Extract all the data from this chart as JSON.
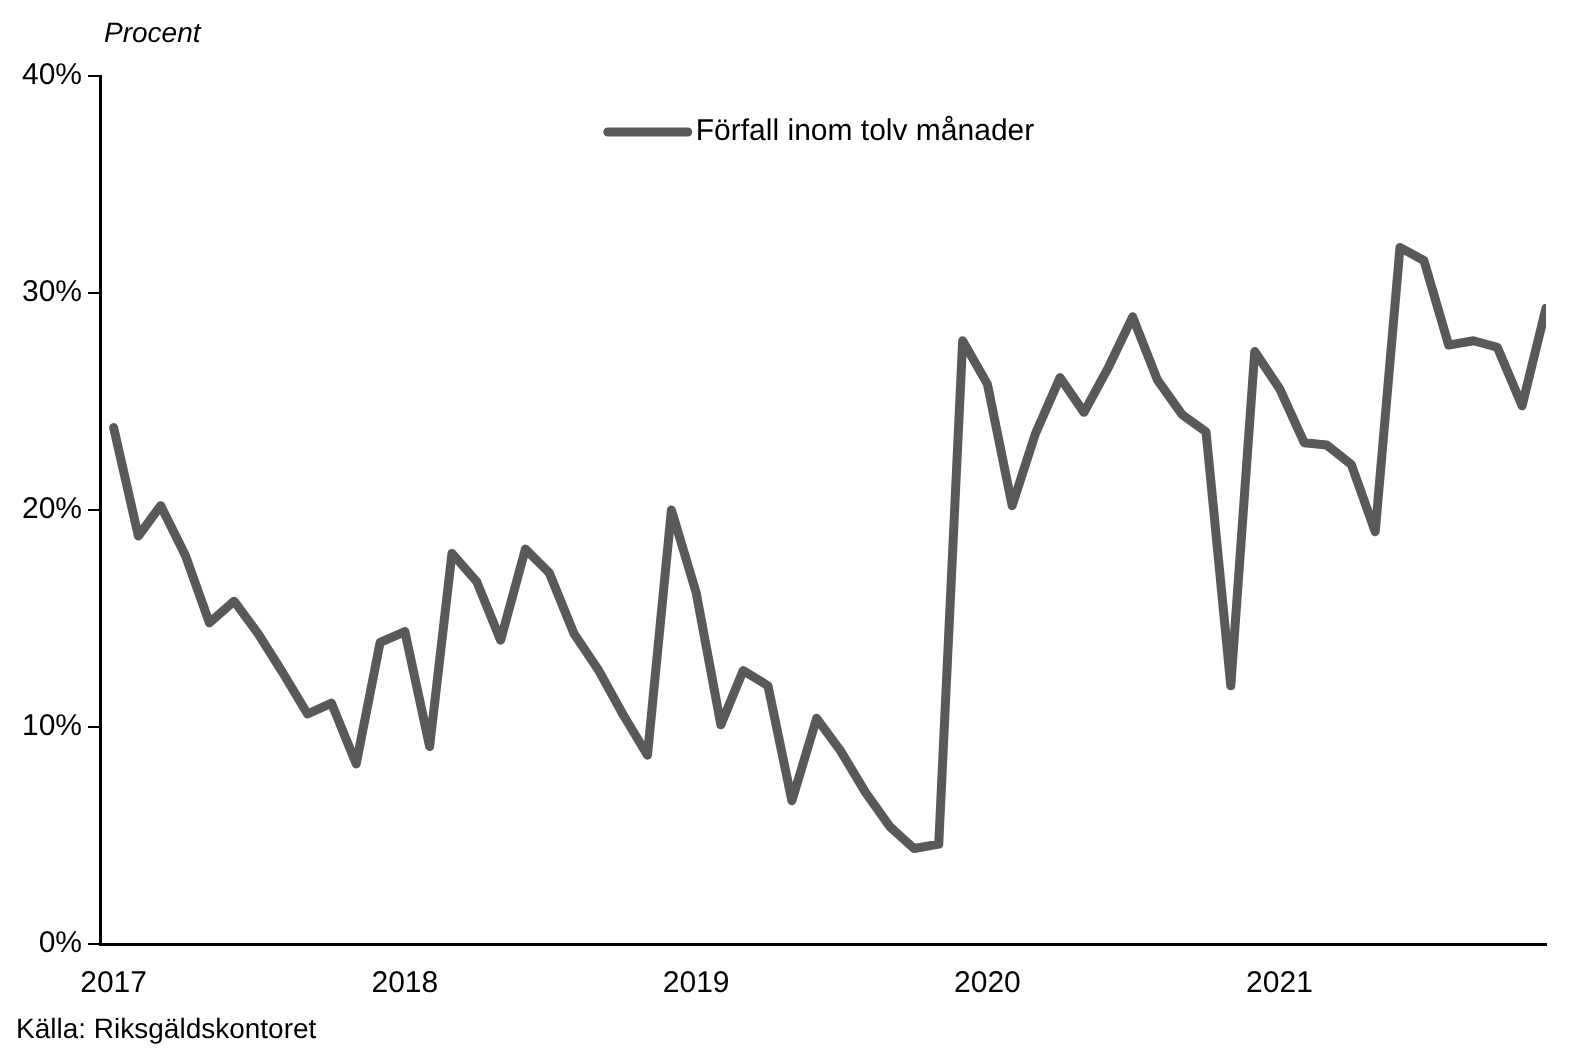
{
  "chart_data": {
    "type": "line",
    "ylabel": "Procent",
    "annotations": [
      "Källa: Riksgäldskontoret"
    ],
    "x": [
      "2017-01",
      "2017-02",
      "2017-03",
      "2017-04",
      "2017-05",
      "2017-06",
      "2017-07",
      "2017-08",
      "2017-09",
      "2017-10",
      "2017-11",
      "2017-12",
      "2018-01",
      "2018-02",
      "2018-03",
      "2018-04",
      "2018-05",
      "2018-06",
      "2018-07",
      "2018-08",
      "2018-09",
      "2018-10",
      "2018-11",
      "2018-12",
      "2019-01",
      "2019-02",
      "2019-03",
      "2019-04",
      "2019-05",
      "2019-06",
      "2019-07",
      "2019-08",
      "2019-09",
      "2019-10",
      "2019-11",
      "2019-12",
      "2020-01",
      "2020-02",
      "2020-03",
      "2020-04",
      "2020-05",
      "2020-06",
      "2020-07",
      "2020-08",
      "2020-09",
      "2020-10",
      "2020-11",
      "2020-12",
      "2021-01",
      "2021-02",
      "2021-03",
      "2021-04",
      "2021-05",
      "2021-06",
      "2021-07",
      "2021-08",
      "2021-09",
      "2021-10",
      "2021-11",
      "2021-12"
    ],
    "series": [
      {
        "name": "Förfall inom tolv månader",
        "color": "#595959",
        "values": [
          23.8,
          18.8,
          20.2,
          17.9,
          14.8,
          15.8,
          14.3,
          12.5,
          10.6,
          11.1,
          8.3,
          13.9,
          14.4,
          9.1,
          18.0,
          16.7,
          14.0,
          18.2,
          17.1,
          14.3,
          12.6,
          10.6,
          8.7,
          20.0,
          16.2,
          10.1,
          12.6,
          11.9,
          6.6,
          10.4,
          8.9,
          7.0,
          5.4,
          4.4,
          4.6,
          27.8,
          25.8,
          20.2,
          23.5,
          26.1,
          24.5,
          26.6,
          28.9,
          26.0,
          24.4,
          23.6,
          11.9,
          27.3,
          25.6,
          23.1,
          23.0,
          22.1,
          19.0,
          32.1,
          31.5,
          27.6,
          27.8,
          27.5,
          24.8,
          29.3
        ]
      }
    ],
    "xlim": [
      "2016-12-15",
      "2021-12"
    ],
    "xticks": [
      "2017",
      "2018",
      "2019",
      "2020",
      "2021"
    ],
    "ylim": [
      0,
      40
    ],
    "yticks": [
      {
        "value": 0,
        "label": "0%"
      },
      {
        "value": 10,
        "label": "10%"
      },
      {
        "value": 20,
        "label": "20%"
      },
      {
        "value": 30,
        "label": "30%"
      },
      {
        "value": 40,
        "label": "40%"
      }
    ],
    "grid": false,
    "legend": "top",
    "line_style": "solid",
    "marker": "none"
  }
}
